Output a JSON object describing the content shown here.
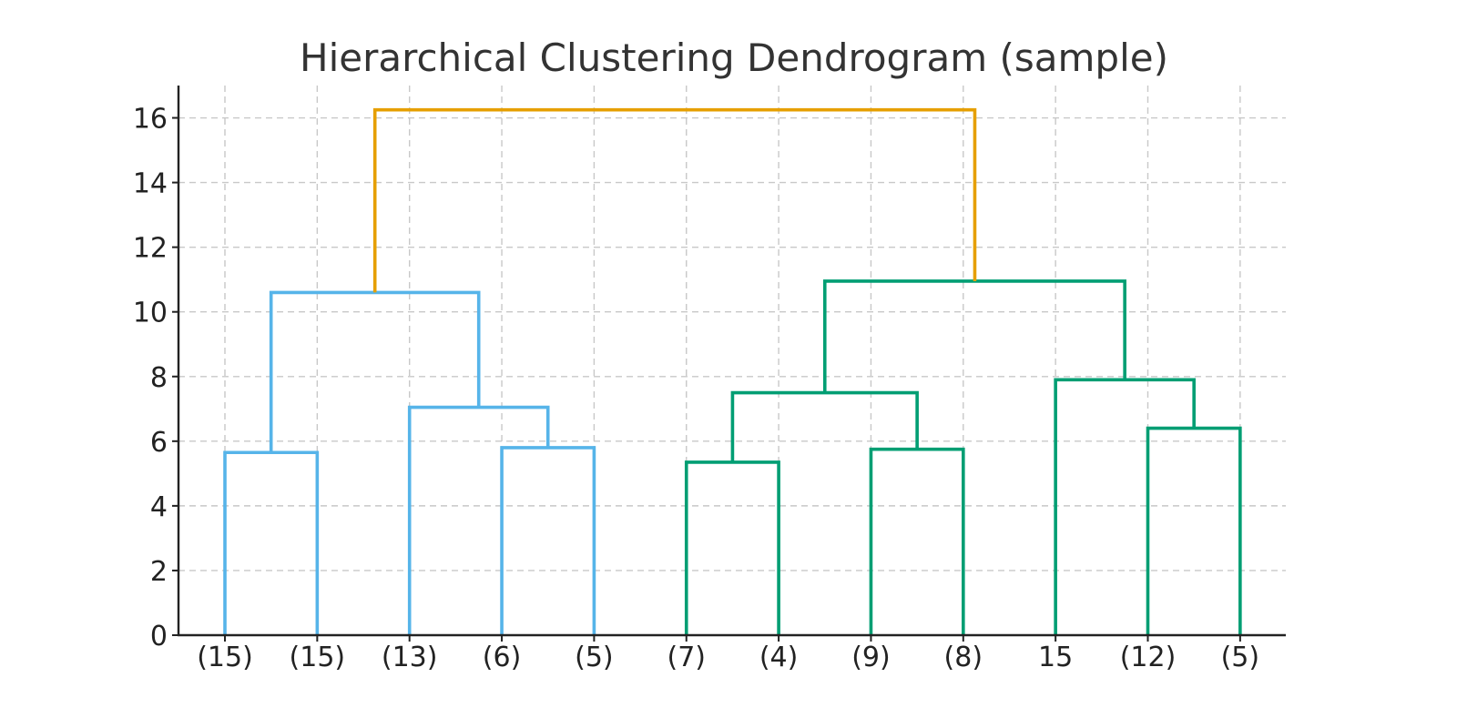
{
  "chart_data": {
    "type": "dendrogram",
    "title": "Hierarchical Clustering Dendrogram (sample)",
    "xlabel": "",
    "ylabel": "",
    "ylim": [
      0,
      17
    ],
    "yticks": [
      0,
      2,
      4,
      6,
      8,
      10,
      12,
      14,
      16
    ],
    "grid": true,
    "leaf_labels": [
      "(15)",
      "(15)",
      "(13)",
      "(6)",
      "(5)",
      "(7)",
      "(4)",
      "(9)",
      "(8)",
      "15",
      "(12)",
      "(5)"
    ],
    "merges": [
      {
        "left": "leaf:0",
        "right": "leaf:1",
        "height": 5.65,
        "color": "#56B4E9"
      },
      {
        "left": "leaf:3",
        "right": "leaf:4",
        "height": 5.8,
        "color": "#56B4E9"
      },
      {
        "left": "leaf:2",
        "right": "merge:1",
        "height": 7.05,
        "color": "#56B4E9"
      },
      {
        "left": "merge:0",
        "right": "merge:2",
        "height": 10.6,
        "color": "#56B4E9"
      },
      {
        "left": "leaf:5",
        "right": "leaf:6",
        "height": 5.35,
        "color": "#009E73"
      },
      {
        "left": "leaf:7",
        "right": "leaf:8",
        "height": 5.75,
        "color": "#009E73"
      },
      {
        "left": "merge:4",
        "right": "merge:5",
        "height": 7.5,
        "color": "#009E73"
      },
      {
        "left": "leaf:10",
        "right": "leaf:11",
        "height": 6.4,
        "color": "#009E73"
      },
      {
        "left": "leaf:9",
        "right": "merge:7",
        "height": 7.9,
        "color": "#009E73"
      },
      {
        "left": "merge:6",
        "right": "merge:8",
        "height": 10.95,
        "color": "#009E73"
      },
      {
        "left": "merge:3",
        "right": "merge:9",
        "height": 16.25,
        "color": "#E69F00"
      }
    ]
  }
}
